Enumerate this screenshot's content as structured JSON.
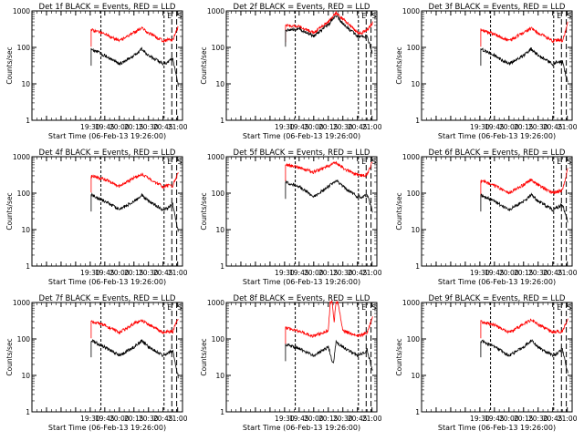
{
  "chart_data": [
    {
      "type": "line",
      "title": "Det 1f BLACK = Events, RED = LLD",
      "xlabel": "Start Time (06-Feb-13 19:26:00)",
      "ylabel": "Counts/sec",
      "y_scale": "log",
      "ylim": [
        1,
        1000
      ],
      "xlim": [
        "18:30",
        "21:05"
      ],
      "x_tick_labels": [
        "19:30",
        "19:45",
        "20:00",
        "20:15",
        "20:30",
        "20:45",
        "21:00"
      ],
      "y_tick_labels": [
        "1",
        "10",
        "100",
        "1000"
      ],
      "grid": false,
      "marker_labels": [
        "E",
        "S"
      ],
      "series": [
        {
          "color": "#ff0000",
          "x": [
            "19:31",
            "19:45",
            "20:00",
            "20:15",
            "20:23",
            "20:30",
            "20:45",
            "20:50",
            "20:55",
            "21:01"
          ],
          "values": [
            300,
            240,
            150,
            260,
            330,
            250,
            150,
            160,
            160,
            400
          ]
        },
        {
          "color": "#000000",
          "x": [
            "19:31",
            "19:45",
            "20:00",
            "20:15",
            "20:23",
            "20:30",
            "20:45",
            "20:50",
            "20:55",
            "21:01"
          ],
          "values": [
            90,
            60,
            35,
            60,
            90,
            60,
            35,
            40,
            50,
            8
          ]
        }
      ]
    },
    {
      "type": "line",
      "title": "Det 2f BLACK = Events, RED = LLD",
      "xlabel": "Start Time (06-Feb-13 19:26:00)",
      "ylabel": "Counts/sec",
      "y_scale": "log",
      "ylim": [
        1,
        1000
      ],
      "xlim": [
        "18:30",
        "21:05"
      ],
      "x_tick_labels": [
        "19:30",
        "19:45",
        "20:00",
        "20:15",
        "20:30",
        "20:45",
        "21:00"
      ],
      "y_tick_labels": [
        "1",
        "10",
        "100",
        "1000"
      ],
      "grid": false,
      "marker_labels": [
        "E",
        "S"
      ],
      "series": [
        {
          "color": "#ff0000",
          "x": [
            "19:31",
            "19:45",
            "20:00",
            "20:15",
            "20:23",
            "20:30",
            "20:45",
            "20:50",
            "20:55",
            "21:01"
          ],
          "values": [
            400,
            380,
            250,
            500,
            900,
            600,
            260,
            250,
            300,
            500
          ]
        },
        {
          "color": "#000000",
          "x": [
            "19:31",
            "19:45",
            "20:00",
            "20:15",
            "20:23",
            "20:30",
            "20:45",
            "20:50",
            "20:55",
            "21:01"
          ],
          "values": [
            300,
            320,
            200,
            420,
            750,
            450,
            200,
            200,
            200,
            60
          ]
        }
      ]
    },
    {
      "type": "line",
      "title": "Det 3f BLACK = Events, RED = LLD",
      "xlabel": "Start Time (06-Feb-13 19:26:00)",
      "ylabel": "Counts/sec",
      "y_scale": "log",
      "ylim": [
        1,
        1000
      ],
      "xlim": [
        "18:30",
        "21:05"
      ],
      "x_tick_labels": [
        "19:30",
        "19:45",
        "20:00",
        "20:15",
        "20:30",
        "20:45",
        "21:00"
      ],
      "y_tick_labels": [
        "1",
        "10",
        "100",
        "1000"
      ],
      "grid": false,
      "marker_labels": [
        "E",
        "S"
      ],
      "series": [
        {
          "color": "#ff0000",
          "x": [
            "19:31",
            "19:45",
            "20:00",
            "20:15",
            "20:23",
            "20:30",
            "20:45",
            "20:50",
            "20:55",
            "21:01"
          ],
          "values": [
            300,
            230,
            150,
            260,
            330,
            250,
            150,
            160,
            150,
            500
          ]
        },
        {
          "color": "#000000",
          "x": [
            "19:31",
            "19:45",
            "20:00",
            "20:15",
            "20:23",
            "20:30",
            "20:45",
            "20:50",
            "20:55",
            "21:01"
          ],
          "values": [
            90,
            60,
            35,
            60,
            90,
            60,
            35,
            40,
            40,
            10
          ]
        }
      ]
    },
    {
      "type": "line",
      "title": "Det 4f BLACK = Events, RED = LLD",
      "xlabel": "Start Time (06-Feb-13 19:26:00)",
      "ylabel": "Counts/sec",
      "y_scale": "log",
      "ylim": [
        1,
        1000
      ],
      "xlim": [
        "18:30",
        "21:05"
      ],
      "x_tick_labels": [
        "19:30",
        "19:45",
        "20:00",
        "20:15",
        "20:30",
        "20:45",
        "21:00"
      ],
      "y_tick_labels": [
        "1",
        "10",
        "100",
        "1000"
      ],
      "grid": false,
      "marker_labels": [
        "E",
        "S"
      ],
      "series": [
        {
          "color": "#ff0000",
          "x": [
            "19:31",
            "19:45",
            "20:00",
            "20:15",
            "20:23",
            "20:30",
            "20:45",
            "20:50",
            "20:55",
            "21:01"
          ],
          "values": [
            300,
            240,
            150,
            260,
            330,
            250,
            150,
            160,
            160,
            400
          ]
        },
        {
          "color": "#000000",
          "x": [
            "19:31",
            "19:45",
            "20:00",
            "20:15",
            "20:23",
            "20:30",
            "20:45",
            "20:50",
            "20:55",
            "21:01"
          ],
          "values": [
            90,
            60,
            35,
            60,
            90,
            60,
            35,
            40,
            50,
            8
          ]
        }
      ]
    },
    {
      "type": "line",
      "title": "Det 5f BLACK = Events, RED = LLD",
      "xlabel": "Start Time (06-Feb-13 19:26:00)",
      "ylabel": "Counts/sec",
      "y_scale": "log",
      "ylim": [
        1,
        1000
      ],
      "xlim": [
        "18:30",
        "21:05"
      ],
      "x_tick_labels": [
        "19:30",
        "19:45",
        "20:00",
        "20:15",
        "20:30",
        "20:45",
        "21:00"
      ],
      "y_tick_labels": [
        "1",
        "10",
        "100",
        "1000"
      ],
      "grid": false,
      "marker_labels": [
        "E",
        "S"
      ],
      "series": [
        {
          "color": "#ff0000",
          "x": [
            "19:31",
            "19:45",
            "20:00",
            "20:15",
            "20:23",
            "20:30",
            "20:45",
            "20:50",
            "20:55",
            "21:01"
          ],
          "values": [
            600,
            500,
            380,
            560,
            700,
            480,
            320,
            300,
            320,
            800
          ]
        },
        {
          "color": "#000000",
          "x": [
            "19:31",
            "19:45",
            "20:00",
            "20:15",
            "20:23",
            "20:30",
            "20:45",
            "20:50",
            "20:55",
            "21:01"
          ],
          "values": [
            200,
            150,
            80,
            150,
            220,
            150,
            80,
            80,
            90,
            30
          ]
        }
      ]
    },
    {
      "type": "line",
      "title": "Det 6f BLACK = Events, RED = LLD",
      "xlabel": "Start Time (06-Feb-13 19:26:00)",
      "ylabel": "Counts/sec",
      "y_scale": "log",
      "ylim": [
        1,
        1000
      ],
      "xlim": [
        "18:30",
        "21:05"
      ],
      "x_tick_labels": [
        "19:30",
        "19:45",
        "20:00",
        "20:15",
        "20:30",
        "20:45",
        "21:00"
      ],
      "y_tick_labels": [
        "1",
        "10",
        "100",
        "1000"
      ],
      "grid": false,
      "marker_labels": [
        "E",
        "S"
      ],
      "series": [
        {
          "color": "#ff0000",
          "x": [
            "19:31",
            "19:45",
            "20:00",
            "20:15",
            "20:23",
            "20:30",
            "20:45",
            "20:50",
            "20:55",
            "21:01"
          ],
          "values": [
            220,
            160,
            100,
            170,
            230,
            170,
            100,
            110,
            120,
            500
          ]
        },
        {
          "color": "#000000",
          "x": [
            "19:31",
            "19:45",
            "20:00",
            "20:15",
            "20:23",
            "20:30",
            "20:45",
            "20:50",
            "20:55",
            "21:01"
          ],
          "values": [
            90,
            60,
            35,
            60,
            90,
            60,
            35,
            40,
            50,
            15
          ]
        }
      ]
    },
    {
      "type": "line",
      "title": "Det 7f BLACK = Events, RED = LLD",
      "xlabel": "Start Time (06-Feb-13 19:26:00)",
      "ylabel": "Counts/sec",
      "y_scale": "log",
      "ylim": [
        1,
        1000
      ],
      "xlim": [
        "18:30",
        "21:05"
      ],
      "x_tick_labels": [
        "19:30",
        "19:45",
        "20:00",
        "20:15",
        "20:30",
        "20:45",
        "21:00"
      ],
      "y_tick_labels": [
        "1",
        "10",
        "100",
        "1000"
      ],
      "grid": false,
      "marker_labels": [
        "E",
        "S"
      ],
      "series": [
        {
          "color": "#ff0000",
          "x": [
            "19:31",
            "19:45",
            "20:00",
            "20:15",
            "20:23",
            "20:30",
            "20:45",
            "20:50",
            "20:55",
            "21:01"
          ],
          "values": [
            300,
            240,
            150,
            260,
            330,
            250,
            150,
            160,
            160,
            400
          ]
        },
        {
          "color": "#000000",
          "x": [
            "19:31",
            "19:45",
            "20:00",
            "20:15",
            "20:23",
            "20:30",
            "20:45",
            "20:50",
            "20:55",
            "21:01"
          ],
          "values": [
            90,
            60,
            35,
            60,
            90,
            60,
            35,
            40,
            50,
            8
          ]
        }
      ]
    },
    {
      "type": "line",
      "title": "Det 8f BLACK = Events, RED = LLD",
      "xlabel": "Start Time (06-Feb-13 19:26:00)",
      "ylabel": "Counts/sec",
      "y_scale": "log",
      "ylim": [
        1,
        1000
      ],
      "xlim": [
        "18:30",
        "21:05"
      ],
      "x_tick_labels": [
        "19:30",
        "19:45",
        "20:00",
        "20:15",
        "20:30",
        "20:45",
        "21:00"
      ],
      "y_tick_labels": [
        "1",
        "10",
        "100",
        "1000"
      ],
      "grid": false,
      "marker_labels": [
        "E",
        "S"
      ],
      "series": [
        {
          "color": "#ff0000",
          "x": [
            "19:31",
            "19:45",
            "20:00",
            "20:15",
            "20:17",
            "20:19",
            "20:21",
            "20:23",
            "20:25",
            "20:30",
            "20:45",
            "20:50",
            "20:55",
            "21:01"
          ],
          "values": [
            200,
            160,
            120,
            170,
            1000,
            1000,
            300,
            1000,
            1000,
            170,
            120,
            130,
            150,
            450
          ]
        },
        {
          "color": "#000000",
          "x": [
            "19:31",
            "19:45",
            "20:00",
            "20:15",
            "20:20",
            "20:23",
            "20:30",
            "20:45",
            "20:50",
            "20:55",
            "21:01"
          ],
          "values": [
            70,
            55,
            35,
            60,
            20,
            80,
            60,
            35,
            40,
            50,
            12
          ]
        }
      ]
    },
    {
      "type": "line",
      "title": "Det 9f BLACK = Events, RED = LLD",
      "xlabel": "Start Time (06-Feb-13 19:26:00)",
      "ylabel": "Counts/sec",
      "y_scale": "log",
      "ylim": [
        1,
        1000
      ],
      "xlim": [
        "18:30",
        "21:05"
      ],
      "x_tick_labels": [
        "19:30",
        "19:45",
        "20:00",
        "20:15",
        "20:30",
        "20:45",
        "21:00"
      ],
      "y_tick_labels": [
        "1",
        "10",
        "100",
        "1000"
      ],
      "grid": false,
      "marker_labels": [
        "E",
        "S"
      ],
      "series": [
        {
          "color": "#ff0000",
          "x": [
            "19:31",
            "19:45",
            "20:00",
            "20:15",
            "20:23",
            "20:30",
            "20:45",
            "20:50",
            "20:55",
            "21:01"
          ],
          "values": [
            300,
            240,
            150,
            260,
            330,
            250,
            150,
            160,
            160,
            400
          ]
        },
        {
          "color": "#000000",
          "x": [
            "19:31",
            "19:45",
            "20:00",
            "20:15",
            "20:23",
            "20:30",
            "20:45",
            "20:50",
            "20:55",
            "21:01"
          ],
          "values": [
            90,
            60,
            35,
            60,
            90,
            60,
            35,
            40,
            50,
            10
          ]
        }
      ]
    }
  ]
}
